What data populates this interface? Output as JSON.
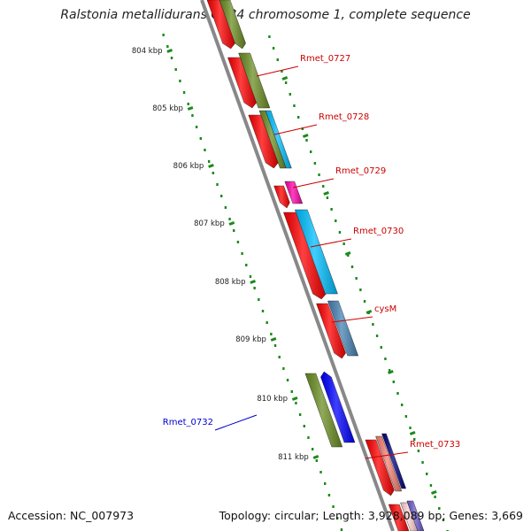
{
  "title": "Ralstonia metallidurans CH34 chromosome 1, complete sequence",
  "ruler_ticks": [
    {
      "label": "804 kbp",
      "kbp": 804
    },
    {
      "label": "805 kbp",
      "kbp": 805
    },
    {
      "label": "806 kbp",
      "kbp": 806
    },
    {
      "label": "807 kbp",
      "kbp": 807
    },
    {
      "label": "808 kbp",
      "kbp": 808
    },
    {
      "label": "809 kbp",
      "kbp": 809
    },
    {
      "label": "810 kbp",
      "kbp": 810
    },
    {
      "label": "811 kbp",
      "kbp": 811
    }
  ],
  "gene_labels": [
    {
      "text": "Rmet_0727",
      "color": "#cc0000"
    },
    {
      "text": "Rmet_0728",
      "color": "#cc0000"
    },
    {
      "text": "Rmet_0729",
      "color": "#cc0000"
    },
    {
      "text": "Rmet_0730",
      "color": "#cc0000"
    },
    {
      "text": "cysM",
      "color": "#cc0000"
    },
    {
      "text": "Rmet_0732",
      "color": "#0000cc"
    },
    {
      "text": "Rmet_0733",
      "color": "#cc0000"
    }
  ],
  "colors": {
    "cds_forward": "#ff0000",
    "olive": "#6b8e23",
    "cyan": "#00bfff",
    "magenta": "#ff00aa",
    "steelblue": "#4682b4",
    "blue": "#0000ff",
    "ruler": "#1a8a1a",
    "backbone": "#888888"
  },
  "footer": {
    "accession": "Accession: NC_007973",
    "stats": "Topology: circular; Length: 3,928,089 bp; Genes: 3,669"
  }
}
